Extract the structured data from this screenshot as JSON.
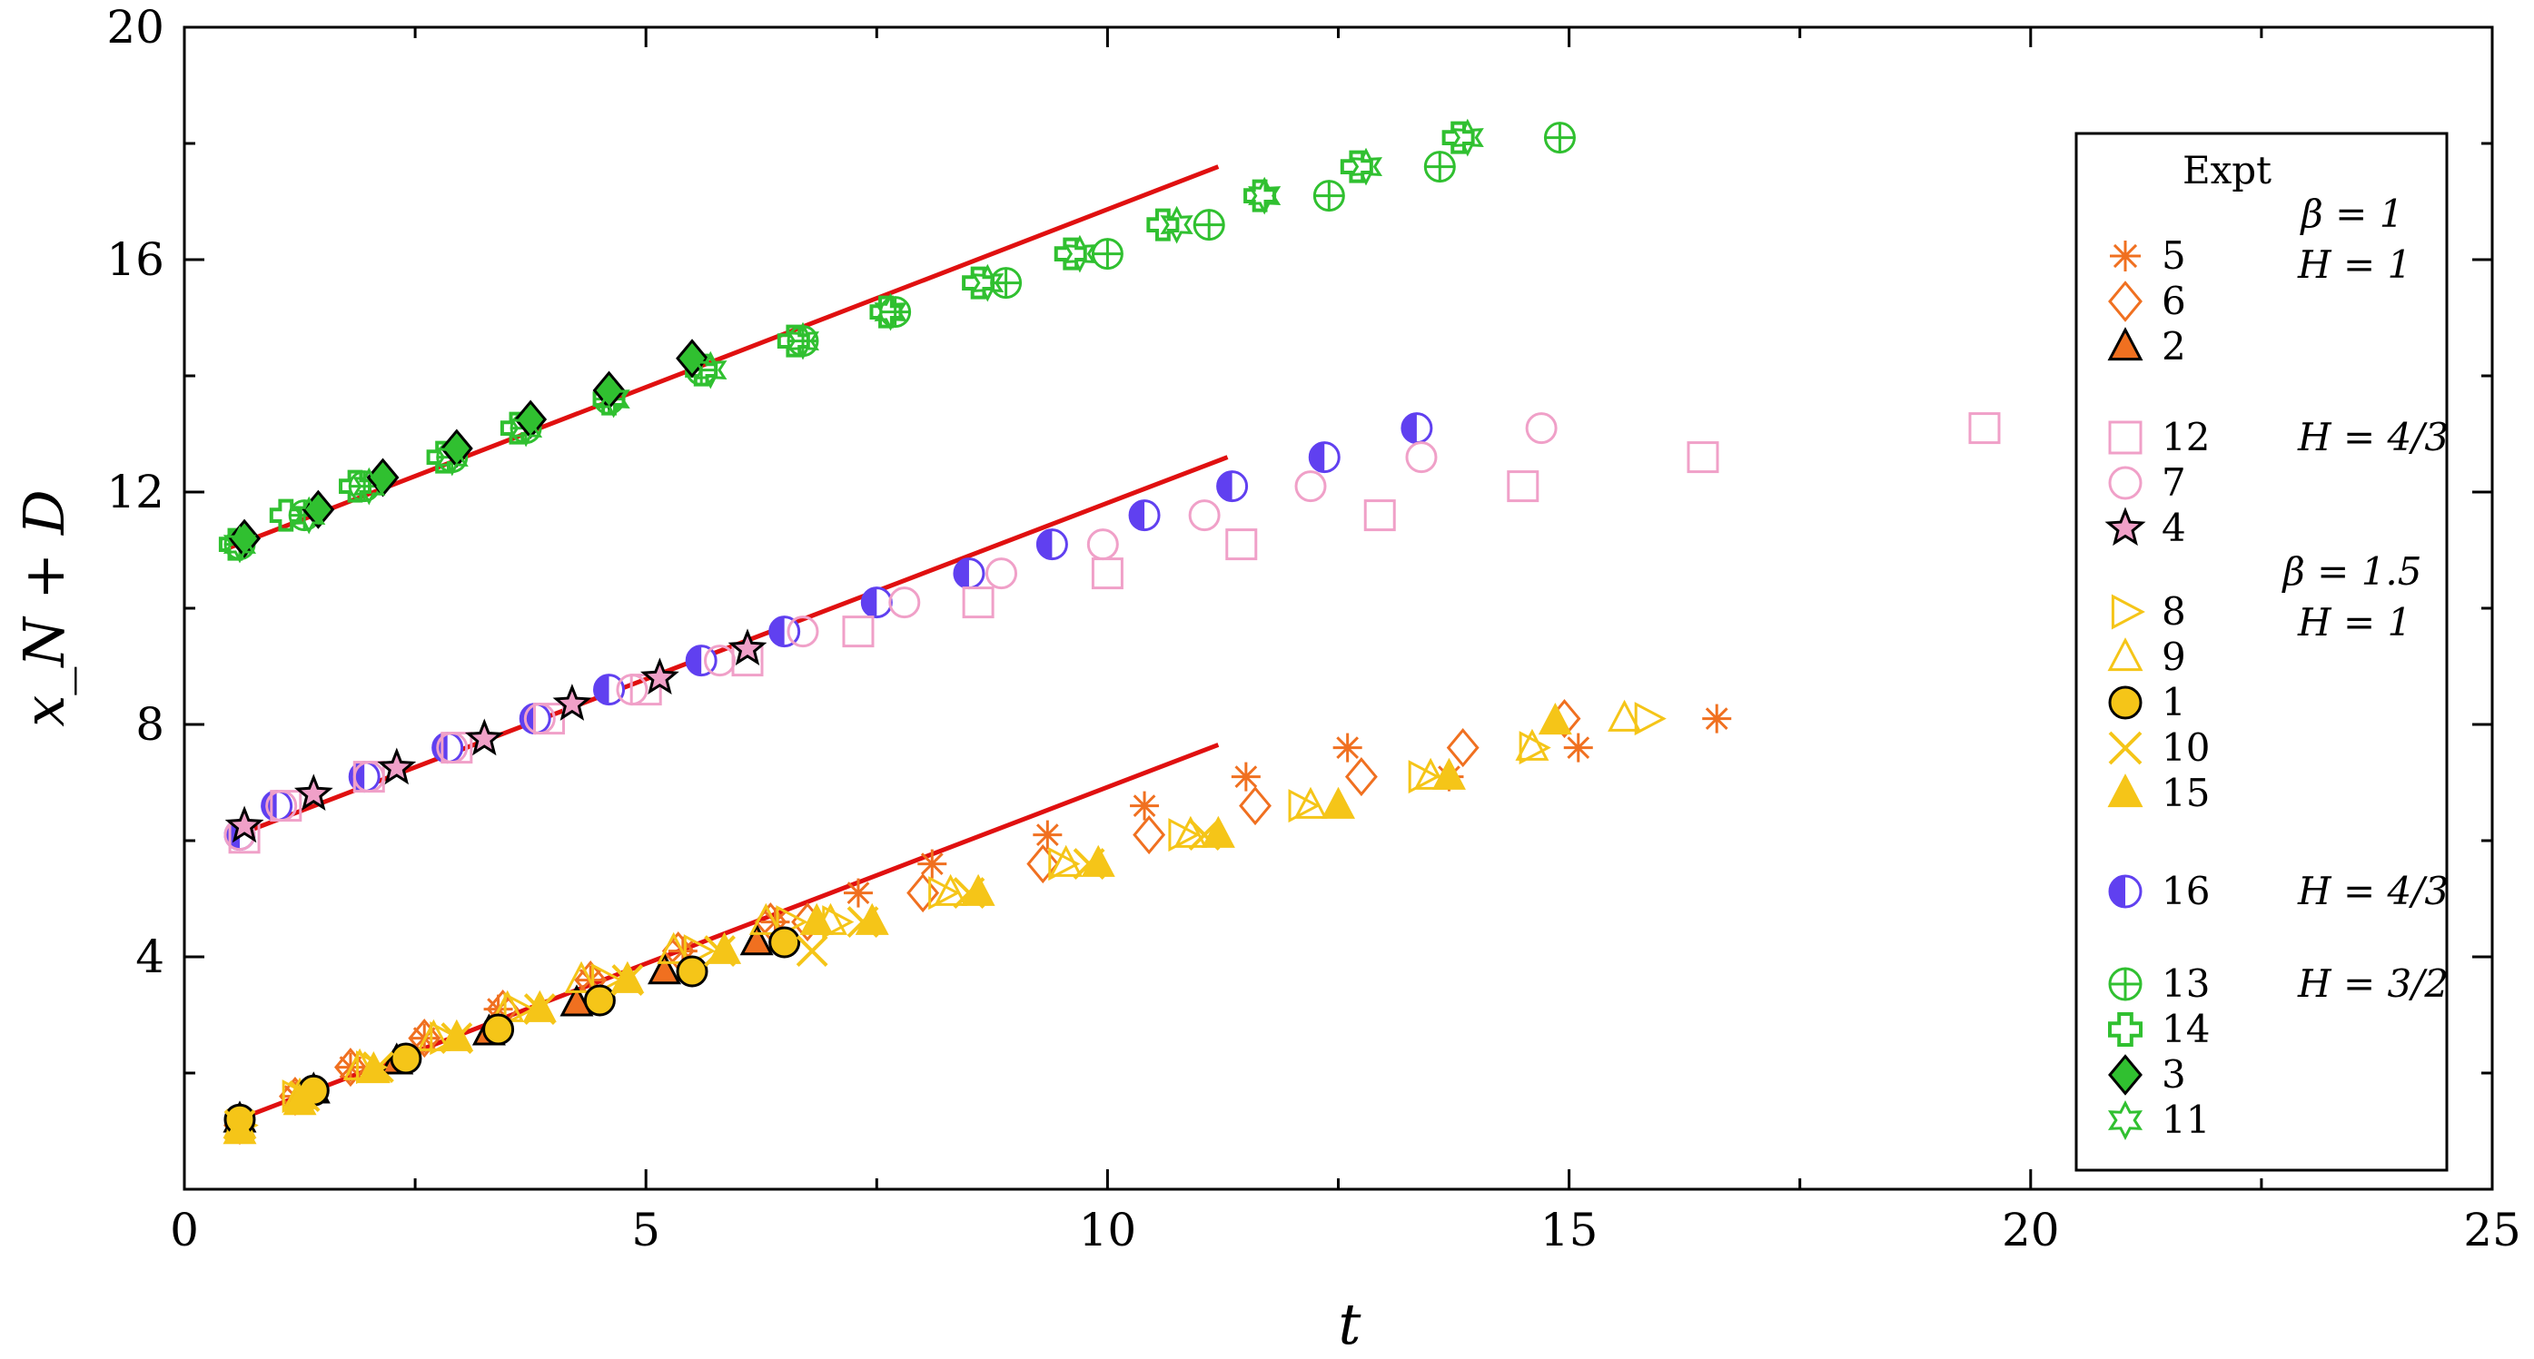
{
  "chart_data": {
    "type": "scatter",
    "xlabel": "t",
    "ylabel": "x_N + D",
    "xlim": [
      0,
      25
    ],
    "ylim": [
      0,
      20
    ],
    "xticks": [
      0,
      5,
      10,
      15,
      20,
      25
    ],
    "yticks": [
      4,
      8,
      12,
      16,
      20
    ],
    "grid": false,
    "legend": {
      "placement": "right",
      "title": "Expt",
      "groups": [
        {
          "param": "β = 1",
          "sub": "H = 1",
          "entries": [
            {
              "label": "5",
              "marker": "asterisk",
              "color": "#f07020"
            },
            {
              "label": "6",
              "marker": "diamond-open",
              "color": "#f07020"
            },
            {
              "label": "2",
              "marker": "triangle-filled-black-edge",
              "color": "#f07020"
            }
          ]
        },
        {
          "sub": "H = 4/3",
          "entries": [
            {
              "label": "12",
              "marker": "square-open",
              "color": "#f0a0c8"
            },
            {
              "label": "7",
              "marker": "circle-open",
              "color": "#f0a0c8"
            },
            {
              "label": "4",
              "marker": "star-black-edge",
              "color": "#f0a0c8"
            }
          ]
        },
        {
          "param": "β = 1.5",
          "sub": "H = 1",
          "entries": [
            {
              "label": "8",
              "marker": "triangle-right-open",
              "color": "#f5c518"
            },
            {
              "label": "9",
              "marker": "triangle-open",
              "color": "#f5c518"
            },
            {
              "label": "1",
              "marker": "circle-filled-black-edge",
              "color": "#f5c518"
            },
            {
              "label": "10",
              "marker": "x",
              "color": "#f5c518"
            },
            {
              "label": "15",
              "marker": "triangle-filled",
              "color": "#f5c518"
            }
          ]
        },
        {
          "sub": "H = 4/3",
          "entries": [
            {
              "label": "16",
              "marker": "half-circle",
              "color": "#6040f0"
            }
          ]
        },
        {
          "sub": "H = 3/2",
          "entries": [
            {
              "label": "13",
              "marker": "circle-plus",
              "color": "#30c030"
            },
            {
              "label": "14",
              "marker": "plus-thick",
              "color": "#30c030"
            },
            {
              "label": "3",
              "marker": "diamond-filled-black-edge",
              "color": "#30c030"
            },
            {
              "label": "11",
              "marker": "hexagram",
              "color": "#30c030"
            }
          ]
        }
      ]
    },
    "fit_lines": [
      {
        "x": [
          0.5,
          11.2
        ],
        "y": [
          1.15,
          7.65
        ],
        "color": "#e01010"
      },
      {
        "x": [
          0.5,
          11.3
        ],
        "y": [
          6.05,
          12.6
        ],
        "color": "#e01010"
      },
      {
        "x": [
          0.5,
          11.2
        ],
        "y": [
          11.05,
          17.6
        ],
        "color": "#e01010"
      }
    ],
    "series": [
      {
        "name": "13",
        "marker": "circle-plus",
        "color": "#30c030",
        "x": [
          0.6,
          1.3,
          1.95,
          2.9,
          3.7,
          4.6,
          5.6,
          6.7,
          7.7,
          8.9,
          10.0,
          11.1,
          12.4,
          13.6,
          14.9
        ],
        "y": [
          11.1,
          11.6,
          12.1,
          12.6,
          13.1,
          13.6,
          14.1,
          14.6,
          15.1,
          15.6,
          16.1,
          16.6,
          17.1,
          17.6,
          18.1
        ]
      },
      {
        "name": "14",
        "marker": "plus-thick",
        "color": "#30c030",
        "x": [
          0.55,
          1.1,
          1.85,
          2.8,
          3.6,
          4.6,
          5.6,
          6.6,
          7.6,
          8.6,
          9.6,
          10.6,
          11.65,
          12.7,
          13.8
        ],
        "y": [
          11.1,
          11.6,
          12.1,
          12.6,
          13.1,
          13.6,
          14.1,
          14.6,
          15.1,
          15.6,
          16.1,
          16.6,
          17.1,
          17.6,
          18.1
        ]
      },
      {
        "name": "3",
        "marker": "diamond-filled-black-edge",
        "color": "#30c030",
        "x": [
          0.65,
          1.45,
          2.15,
          2.95,
          3.75,
          4.6,
          5.5
        ],
        "y": [
          11.2,
          11.7,
          12.25,
          12.75,
          13.25,
          13.75,
          14.3
        ]
      },
      {
        "name": "11",
        "marker": "hexagram",
        "color": "#30c030",
        "x": [
          0.6,
          1.35,
          2.0,
          2.9,
          3.7,
          4.65,
          5.7,
          6.7,
          7.65,
          8.7,
          9.7,
          10.75,
          11.7,
          12.8,
          13.9
        ],
        "y": [
          11.1,
          11.6,
          12.1,
          12.6,
          13.1,
          13.6,
          14.1,
          14.6,
          15.1,
          15.6,
          16.1,
          16.6,
          17.1,
          17.6,
          18.1
        ]
      },
      {
        "name": "16",
        "marker": "half-circle",
        "color": "#6040f0",
        "x": [
          0.6,
          1.0,
          1.95,
          2.85,
          3.8,
          4.6,
          5.6,
          6.5,
          7.5,
          8.5,
          9.4,
          10.4,
          11.35,
          12.35,
          13.35
        ],
        "y": [
          6.1,
          6.6,
          7.1,
          7.6,
          8.1,
          8.6,
          9.1,
          9.6,
          10.1,
          10.6,
          11.1,
          11.6,
          12.1,
          12.6,
          13.1
        ]
      },
      {
        "name": "7",
        "marker": "circle-open",
        "color": "#f0a0c8",
        "x": [
          0.6,
          1.05,
          2.0,
          2.9,
          3.85,
          4.85,
          5.8,
          6.7,
          7.8,
          8.85,
          9.95,
          11.05,
          12.2,
          13.4,
          14.7
        ],
        "y": [
          6.1,
          6.6,
          7.1,
          7.6,
          8.1,
          8.6,
          9.1,
          9.6,
          10.1,
          10.6,
          11.1,
          11.6,
          12.1,
          12.6,
          13.1
        ]
      },
      {
        "name": "12",
        "marker": "square-open",
        "color": "#f0a0c8",
        "x": [
          0.65,
          1.1,
          2.0,
          2.95,
          3.95,
          5.0,
          6.1,
          7.3,
          8.6,
          10.0,
          11.45,
          12.95,
          14.5,
          16.45,
          19.5
        ],
        "y": [
          6.05,
          6.6,
          7.1,
          7.6,
          8.1,
          8.6,
          9.1,
          9.6,
          10.1,
          10.6,
          11.1,
          11.6,
          12.1,
          12.6,
          13.1
        ]
      },
      {
        "name": "4",
        "marker": "star-black-edge",
        "color": "#f0a0c8",
        "x": [
          0.65,
          1.4,
          2.3,
          3.25,
          4.2,
          5.15,
          6.1
        ],
        "y": [
          6.25,
          6.8,
          7.25,
          7.75,
          8.35,
          8.8,
          9.3
        ]
      },
      {
        "name": "5",
        "marker": "asterisk",
        "color": "#f07020",
        "x": [
          0.6,
          1.2,
          1.8,
          2.6,
          3.4,
          4.4,
          5.4,
          6.4,
          7.3,
          8.1,
          9.35,
          10.4,
          11.5,
          12.6,
          13.7,
          15.1,
          16.6
        ],
        "y": [
          1.1,
          1.6,
          2.1,
          2.6,
          3.1,
          3.6,
          4.1,
          4.6,
          5.1,
          5.6,
          6.1,
          6.6,
          7.1,
          7.6,
          7.1,
          7.6,
          8.1
        ]
      },
      {
        "name": "6",
        "marker": "diamond-open",
        "color": "#f07020",
        "x": [
          0.6,
          1.2,
          1.8,
          2.6,
          3.45,
          4.4,
          5.35,
          6.35,
          6.75,
          8.0,
          9.3,
          10.45,
          11.6,
          12.75,
          13.85,
          14.95
        ],
        "y": [
          1.1,
          1.6,
          2.1,
          2.6,
          3.1,
          3.6,
          4.1,
          4.6,
          4.6,
          5.1,
          5.6,
          6.1,
          6.6,
          7.1,
          7.6,
          8.1
        ]
      },
      {
        "name": "2",
        "marker": "triangle-filled-black-edge",
        "color": "#f07020",
        "x": [
          0.6,
          1.4,
          2.3,
          3.3,
          4.25,
          5.2,
          6.2
        ],
        "y": [
          1.2,
          1.7,
          2.2,
          2.7,
          3.2,
          3.75,
          4.25
        ]
      },
      {
        "name": "8",
        "marker": "triangle-right-open",
        "color": "#f5c518",
        "x": [
          0.6,
          1.2,
          2.0,
          2.8,
          3.6,
          4.55,
          5.55,
          6.55,
          7.05,
          8.2,
          9.5,
          10.8,
          12.1,
          13.4,
          14.6,
          15.85
        ],
        "y": [
          1.1,
          1.6,
          2.1,
          2.6,
          3.1,
          3.6,
          4.1,
          4.6,
          4.6,
          5.1,
          5.6,
          6.1,
          6.6,
          7.1,
          7.6,
          8.1
        ]
      },
      {
        "name": "9",
        "marker": "triangle-open",
        "color": "#f5c518",
        "x": [
          0.6,
          1.25,
          1.9,
          2.7,
          3.5,
          4.3,
          5.3,
          6.3,
          7.0,
          8.3,
          9.55,
          10.9,
          12.2,
          13.5,
          14.6,
          15.6
        ],
        "y": [
          1.1,
          1.6,
          2.1,
          2.6,
          3.1,
          3.6,
          4.1,
          4.6,
          4.6,
          5.1,
          5.6,
          6.1,
          6.6,
          7.1,
          7.6,
          8.1
        ]
      },
      {
        "name": "1",
        "marker": "circle-filled-black-edge",
        "color": "#f5c518",
        "x": [
          0.6,
          1.4,
          2.4,
          3.4,
          4.5,
          5.5,
          6.5
        ],
        "y": [
          1.2,
          1.7,
          2.25,
          2.75,
          3.25,
          3.75,
          4.25
        ]
      },
      {
        "name": "10",
        "marker": "x",
        "color": "#f5c518",
        "x": [
          0.6,
          1.3,
          2.1,
          2.95,
          3.85,
          4.8,
          5.8,
          6.8,
          7.35,
          8.5,
          9.8,
          11.05
        ],
        "y": [
          1.1,
          1.6,
          2.1,
          2.6,
          3.1,
          3.6,
          4.1,
          4.1,
          4.6,
          5.1,
          5.6,
          6.1
        ]
      },
      {
        "name": "15",
        "marker": "triangle-filled",
        "color": "#f5c518",
        "x": [
          0.6,
          1.25,
          2.05,
          2.95,
          3.85,
          4.8,
          5.85,
          6.85,
          7.45,
          8.6,
          9.9,
          11.2,
          12.5,
          13.7,
          14.85
        ],
        "y": [
          1.0,
          1.5,
          2.05,
          2.6,
          3.1,
          3.6,
          4.1,
          4.6,
          4.6,
          5.1,
          5.6,
          6.1,
          6.6,
          7.1,
          8.05
        ]
      }
    ]
  }
}
